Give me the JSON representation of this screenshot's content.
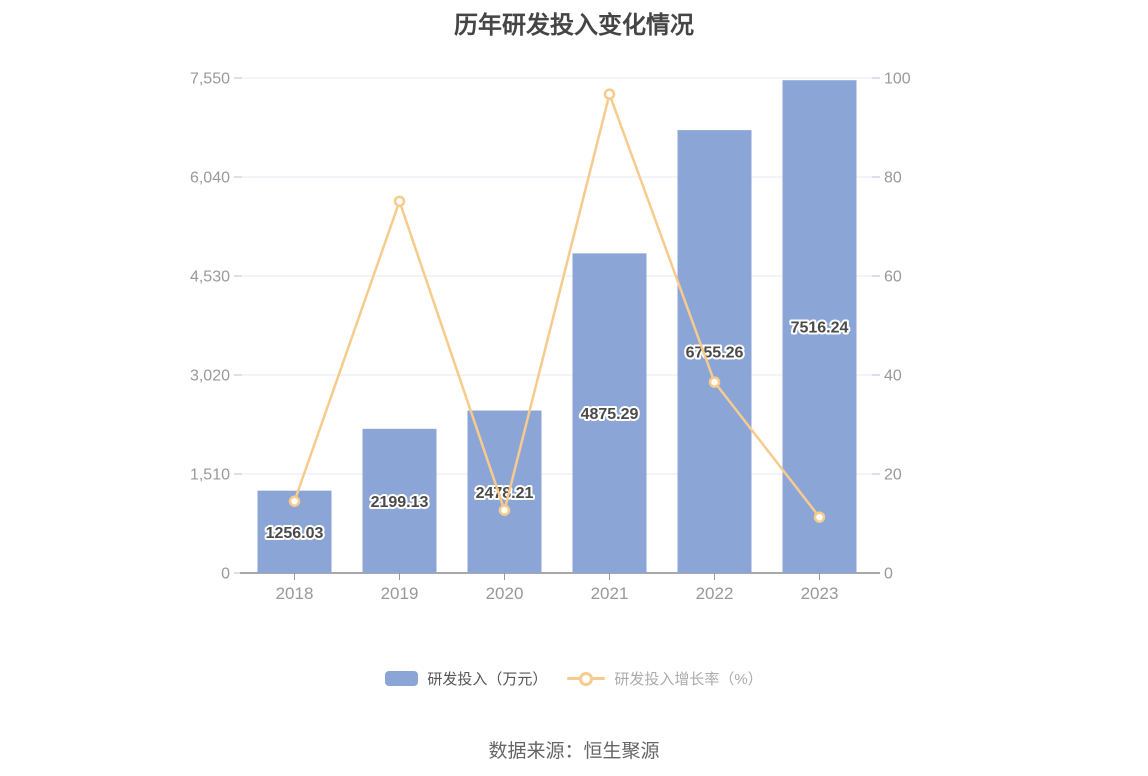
{
  "title": "历年研发投入变化情况",
  "source": "数据来源：恒生聚源",
  "colors": {
    "bar": "#8CA5D7",
    "line": "#F6CB8C",
    "title_text": "#454545",
    "axis_label": "#999999",
    "grid_line": "#E4EAF4",
    "axis_line": "#8C8C8C",
    "axis_tick_side": "#B8C2D4",
    "axis_tick_bottom": "#999999",
    "bar_label_text": "#4A4A4A",
    "bar_label_halo": "#FFFFFF",
    "legend_text_bar": "#565656",
    "legend_text_line": "#ABABAB",
    "source_text": "#666666"
  },
  "chart_data": {
    "type": "bar",
    "subtype": "bar-line-combo",
    "title": "历年研发投入变化情况",
    "categories": [
      "2018",
      "2019",
      "2020",
      "2021",
      "2022",
      "2023"
    ],
    "series": [
      {
        "name": "研发投入（万元）",
        "type": "bar",
        "yaxis": "left",
        "color": "#8CA5D7",
        "values": [
          1256.03,
          2199.13,
          2478.21,
          4875.29,
          6755.26,
          7516.24
        ],
        "value_labels": [
          "1256.03",
          "2199.13",
          "2478.21",
          "4875.29",
          "6755.26",
          "7516.24"
        ]
      },
      {
        "name": "研发投入增长率（%）",
        "type": "line",
        "yaxis": "right",
        "color": "#F6CB8C",
        "values": [
          14.5,
          75.08,
          12.69,
          96.73,
          38.56,
          11.27
        ]
      }
    ],
    "left_axis": {
      "min": 0,
      "max": 7550,
      "tick_labels": [
        "7,550",
        "6,040",
        "4,530",
        "3,020",
        "1,510",
        "0"
      ]
    },
    "right_axis": {
      "min": 0,
      "max": 100,
      "tick_labels": [
        "100",
        "80",
        "60",
        "40",
        "20",
        "0"
      ]
    },
    "grid": true,
    "legend_position": "bottom"
  }
}
